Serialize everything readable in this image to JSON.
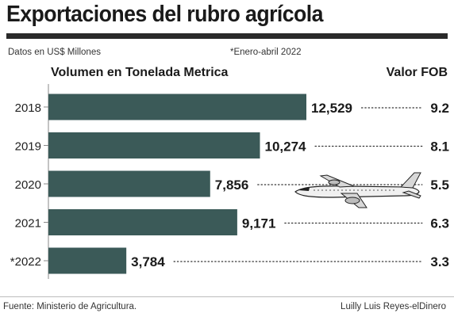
{
  "title": "Exportaciones del rubro agrícola",
  "note_units": "Datos en US$ Millones",
  "note_period": "*Enero-abril 2022",
  "header_left": "Volumen en Tonelada Metrica",
  "header_right": "Valor FOB",
  "source": "Fuente: Ministerio de Agricultura.",
  "credit": "Luilly Luis Reyes-elDinero",
  "icon": "airplane-icon",
  "colors": {
    "bar": "#3b5a58",
    "text": "#1a1a1a"
  },
  "chart_data": {
    "type": "bar",
    "orientation": "horizontal",
    "categories": [
      "2018",
      "2019",
      "2020",
      "2021",
      "*2022"
    ],
    "series": [
      {
        "name": "Volumen en Tonelada Metrica",
        "values": [
          12529,
          10274,
          7856,
          9171,
          3784
        ],
        "labels": [
          "12,529",
          "10,274",
          "7,856",
          "9,171",
          "3,784"
        ]
      },
      {
        "name": "Valor FOB",
        "values": [
          9.2,
          8.1,
          5.5,
          6.3,
          3.3
        ],
        "labels": [
          "9.2",
          "8.1",
          "5.5",
          "6.3",
          "3.3"
        ]
      }
    ],
    "xlim": [
      0,
      12529
    ]
  }
}
